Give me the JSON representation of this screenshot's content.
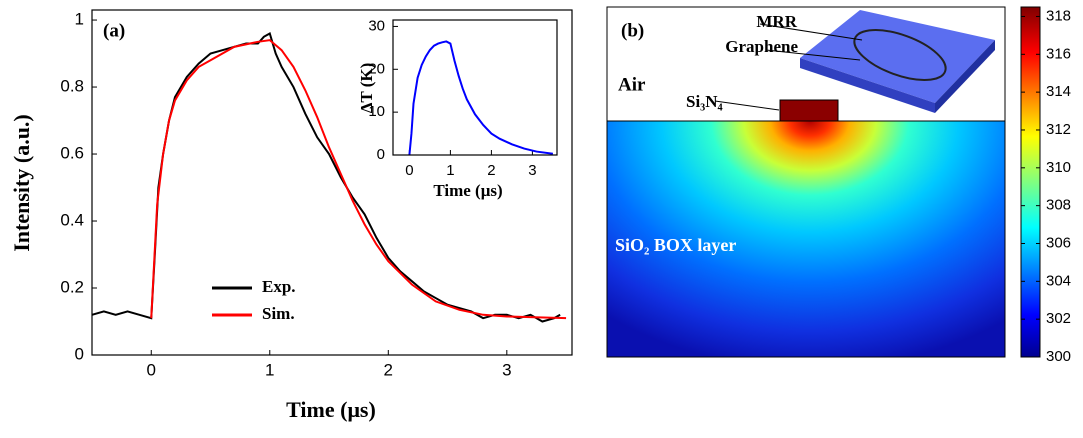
{
  "chart_data": [
    {
      "type": "line",
      "panel_label": "(a)",
      "x_label": "Time (μs)",
      "y_label": "Intensity (a.u.)",
      "xlim": [
        -0.5,
        3.55
      ],
      "ylim": [
        0,
        1.03
      ],
      "xticks": [
        0,
        1,
        2,
        3
      ],
      "yticks": [
        0,
        0.2,
        0.4,
        0.6,
        0.8,
        1
      ],
      "legend": "lower left",
      "series": [
        {
          "name": "Exp.",
          "color": "#000000",
          "x": [
            -0.5,
            -0.4,
            -0.3,
            -0.2,
            -0.1,
            0,
            0.03,
            0.06,
            0.1,
            0.15,
            0.2,
            0.3,
            0.4,
            0.5,
            0.6,
            0.7,
            0.8,
            0.9,
            0.95,
            1.0,
            1.05,
            1.1,
            1.2,
            1.3,
            1.4,
            1.5,
            1.6,
            1.7,
            1.8,
            1.9,
            2.0,
            2.1,
            2.2,
            2.3,
            2.4,
            2.5,
            2.6,
            2.7,
            2.8,
            2.9,
            3.0,
            3.1,
            3.2,
            3.3,
            3.4,
            3.45
          ],
          "values": [
            0.12,
            0.13,
            0.12,
            0.13,
            0.12,
            0.11,
            0.3,
            0.5,
            0.6,
            0.7,
            0.77,
            0.83,
            0.87,
            0.9,
            0.91,
            0.92,
            0.93,
            0.93,
            0.95,
            0.96,
            0.9,
            0.86,
            0.8,
            0.72,
            0.65,
            0.6,
            0.53,
            0.47,
            0.42,
            0.35,
            0.29,
            0.25,
            0.22,
            0.19,
            0.17,
            0.15,
            0.14,
            0.13,
            0.11,
            0.12,
            0.12,
            0.11,
            0.12,
            0.1,
            0.11,
            0.12
          ]
        },
        {
          "name": "Sim.",
          "color": "#ff0000",
          "x": [
            0,
            0.05,
            0.1,
            0.15,
            0.2,
            0.3,
            0.4,
            0.5,
            0.7,
            0.9,
            1.0,
            1.1,
            1.2,
            1.3,
            1.4,
            1.5,
            1.6,
            1.7,
            1.8,
            1.9,
            2.0,
            2.2,
            2.4,
            2.6,
            2.8,
            3.0,
            3.5
          ],
          "values": [
            0.11,
            0.45,
            0.6,
            0.7,
            0.76,
            0.82,
            0.86,
            0.88,
            0.92,
            0.935,
            0.94,
            0.91,
            0.86,
            0.79,
            0.71,
            0.62,
            0.54,
            0.46,
            0.39,
            0.33,
            0.28,
            0.21,
            0.16,
            0.135,
            0.12,
            0.115,
            0.11
          ]
        }
      ]
    },
    {
      "type": "line",
      "x_label": "Time (μs)",
      "y_label": "ΔT (K)",
      "xlim": [
        -0.4,
        3.6
      ],
      "ylim": [
        0,
        31.5
      ],
      "xticks": [
        0,
        1,
        2,
        3
      ],
      "yticks": [
        0,
        10,
        20,
        30
      ],
      "series": [
        {
          "color": "#0000ff",
          "x": [
            0,
            0.05,
            0.1,
            0.2,
            0.3,
            0.4,
            0.5,
            0.6,
            0.7,
            0.8,
            0.9,
            1.0,
            1.1,
            1.2,
            1.3,
            1.4,
            1.6,
            1.8,
            2.0,
            2.2,
            2.5,
            2.8,
            3.1,
            3.5
          ],
          "values": [
            0,
            5,
            12,
            18,
            21,
            23,
            24.5,
            25.5,
            26,
            26.3,
            26.5,
            26,
            22,
            18.5,
            15.5,
            13,
            9.5,
            7,
            5,
            3.8,
            2.5,
            1.5,
            0.8,
            0.3
          ]
        }
      ]
    },
    {
      "type": "heatmap",
      "panel_label": "(b)",
      "clim": [
        300,
        318.5
      ],
      "cticks": [
        300,
        302,
        304,
        306,
        308,
        310,
        312,
        314,
        316,
        318
      ],
      "labels": {
        "air": "Air",
        "core": "Si₃N₄",
        "box": "SiO₂ BOX layer",
        "mrr": "MRR",
        "graphene": "Graphene"
      }
    }
  ]
}
